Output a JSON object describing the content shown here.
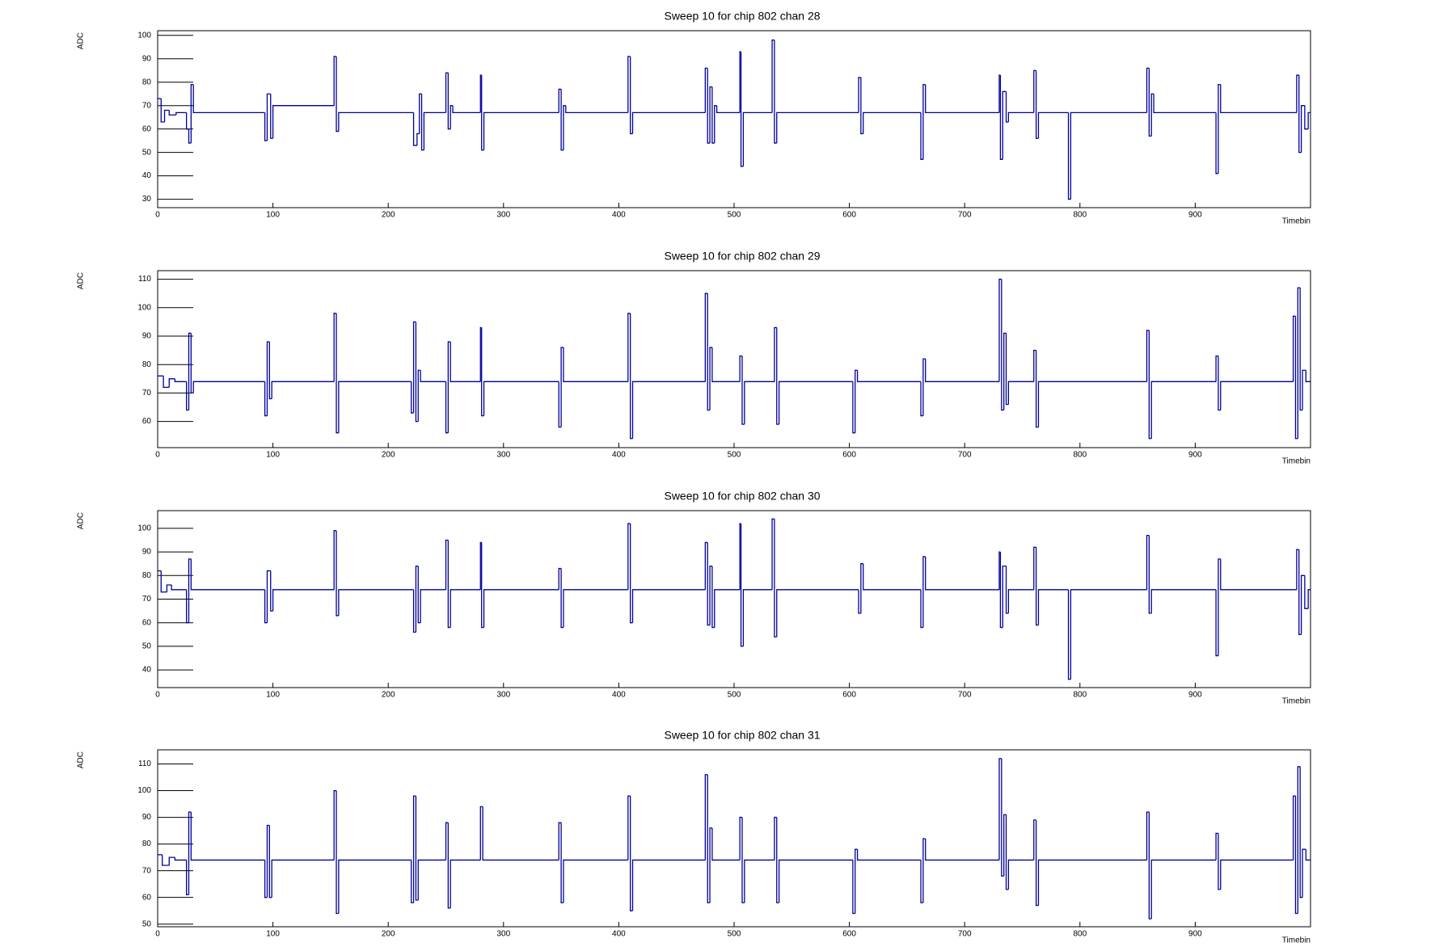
{
  "chart_data": [
    {
      "type": "line",
      "drawstyle": "steps-post",
      "title": "Sweep 10 for chip 802 chan 28",
      "x_label": "Timebin",
      "y_label": "ADC",
      "color": "#000099",
      "xlim": [
        0,
        1000
      ],
      "xticks": [
        0,
        100,
        200,
        300,
        400,
        500,
        600,
        700,
        800,
        900
      ],
      "ylim": [
        26.4,
        102
      ],
      "yticks": [
        30,
        40,
        50,
        60,
        70,
        80,
        90,
        100
      ],
      "x": [
        0,
        3,
        6,
        10,
        16,
        25,
        27,
        29,
        31,
        93,
        95,
        98,
        100,
        153,
        155,
        157,
        222,
        225,
        227,
        229,
        231,
        250,
        252,
        254,
        256,
        280,
        281,
        283,
        348,
        350,
        352,
        354,
        408,
        410,
        412,
        475,
        477,
        479,
        481,
        483,
        485,
        505,
        506,
        508,
        533,
        535,
        537,
        608,
        610,
        612,
        662,
        664,
        666,
        730,
        731,
        733,
        736,
        738,
        760,
        762,
        764,
        790,
        792,
        858,
        860,
        862,
        864,
        918,
        920,
        922,
        988,
        990,
        992,
        995,
        998
      ],
      "values": [
        73,
        63,
        68,
        66,
        67,
        60,
        54,
        79,
        67,
        55,
        75,
        56,
        70,
        91,
        59,
        67,
        53,
        58,
        75,
        51,
        67,
        84,
        60,
        70,
        67,
        83,
        51,
        67,
        77,
        51,
        70,
        67,
        91,
        58,
        67,
        86,
        54,
        78,
        54,
        70,
        67,
        93,
        44,
        67,
        98,
        54,
        67,
        82,
        58,
        67,
        47,
        79,
        67,
        83,
        47,
        76,
        63,
        67,
        85,
        56,
        67,
        30,
        67,
        86,
        57,
        75,
        67,
        41,
        79,
        67,
        83,
        50,
        70,
        60,
        67
      ]
    },
    {
      "type": "line",
      "drawstyle": "steps-post",
      "title": "Sweep 10 for chip 802 chan 29",
      "x_label": "Timebin",
      "y_label": "ADC",
      "color": "#000099",
      "xlim": [
        0,
        1000
      ],
      "xticks": [
        0,
        100,
        200,
        300,
        400,
        500,
        600,
        700,
        800,
        900
      ],
      "ylim": [
        50.8,
        113
      ],
      "yticks": [
        60,
        70,
        80,
        90,
        100,
        110
      ],
      "x": [
        0,
        5,
        10,
        15,
        25,
        27,
        29,
        31,
        93,
        95,
        97,
        99,
        153,
        155,
        157,
        220,
        222,
        224,
        226,
        228,
        250,
        252,
        254,
        280,
        281,
        283,
        348,
        350,
        352,
        408,
        410,
        412,
        475,
        477,
        479,
        481,
        505,
        507,
        509,
        535,
        537,
        539,
        603,
        605,
        607,
        662,
        664,
        666,
        730,
        732,
        734,
        736,
        738,
        760,
        762,
        764,
        858,
        860,
        862,
        918,
        920,
        922,
        985,
        987,
        989,
        991,
        993,
        996
      ],
      "values": [
        76,
        72,
        75,
        74,
        64,
        91,
        70,
        74,
        62,
        88,
        68,
        74,
        98,
        56,
        74,
        63,
        95,
        60,
        78,
        74,
        56,
        88,
        74,
        93,
        62,
        74,
        58,
        86,
        74,
        98,
        54,
        74,
        105,
        64,
        86,
        74,
        83,
        59,
        74,
        93,
        59,
        74,
        56,
        78,
        74,
        62,
        82,
        74,
        110,
        64,
        91,
        66,
        74,
        85,
        58,
        74,
        92,
        54,
        74,
        83,
        64,
        74,
        97,
        54,
        107,
        64,
        78,
        74
      ]
    },
    {
      "type": "line",
      "drawstyle": "steps-post",
      "title": "Sweep 10 for chip 802 chan 30",
      "x_label": "Timebin",
      "y_label": "ADC",
      "color": "#000099",
      "xlim": [
        0,
        1000
      ],
      "xticks": [
        0,
        100,
        200,
        300,
        400,
        500,
        600,
        700,
        800,
        900
      ],
      "ylim": [
        32.5,
        107.5
      ],
      "yticks": [
        40,
        50,
        60,
        70,
        80,
        90,
        100
      ],
      "x": [
        0,
        3,
        8,
        12,
        25,
        27,
        29,
        93,
        95,
        98,
        100,
        153,
        155,
        157,
        222,
        224,
        226,
        228,
        250,
        252,
        254,
        280,
        281,
        283,
        348,
        350,
        352,
        408,
        410,
        412,
        475,
        477,
        479,
        481,
        483,
        505,
        506,
        508,
        533,
        535,
        537,
        608,
        610,
        612,
        662,
        664,
        666,
        730,
        731,
        733,
        736,
        738,
        760,
        762,
        764,
        790,
        792,
        858,
        860,
        862,
        918,
        920,
        922,
        988,
        990,
        992,
        995,
        998
      ],
      "values": [
        82,
        73,
        76,
        74,
        60,
        87,
        74,
        60,
        82,
        65,
        74,
        99,
        63,
        74,
        56,
        84,
        60,
        74,
        95,
        58,
        74,
        94,
        58,
        74,
        83,
        58,
        74,
        102,
        60,
        74,
        94,
        59,
        84,
        58,
        74,
        102,
        50,
        74,
        104,
        54,
        74,
        64,
        85,
        74,
        58,
        88,
        74,
        90,
        58,
        84,
        64,
        74,
        92,
        59,
        74,
        36,
        74,
        97,
        64,
        74,
        46,
        87,
        74,
        91,
        55,
        80,
        66,
        74
      ]
    },
    {
      "type": "line",
      "drawstyle": "steps-post",
      "title": "Sweep 10 for chip 802 chan 31",
      "x_label": "Timebin",
      "y_label": "ADC",
      "color": "#000099",
      "xlim": [
        0,
        1000
      ],
      "xticks": [
        0,
        100,
        200,
        300,
        400,
        500,
        600,
        700,
        800,
        900
      ],
      "ylim": [
        49,
        115.3
      ],
      "yticks": [
        50,
        60,
        70,
        80,
        90,
        100,
        110
      ],
      "x": [
        0,
        4,
        10,
        15,
        25,
        27,
        29,
        93,
        95,
        97,
        99,
        153,
        155,
        157,
        220,
        222,
        224,
        226,
        250,
        252,
        254,
        280,
        282,
        348,
        350,
        352,
        408,
        410,
        412,
        475,
        477,
        479,
        481,
        505,
        507,
        509,
        535,
        537,
        539,
        603,
        605,
        607,
        662,
        664,
        666,
        730,
        732,
        734,
        736,
        738,
        760,
        762,
        764,
        858,
        860,
        862,
        918,
        920,
        922,
        985,
        987,
        989,
        991,
        993,
        996
      ],
      "values": [
        76,
        72,
        75,
        74,
        61,
        92,
        74,
        60,
        87,
        60,
        74,
        100,
        54,
        74,
        58,
        98,
        59,
        74,
        88,
        56,
        74,
        94,
        74,
        88,
        58,
        74,
        98,
        55,
        74,
        106,
        58,
        86,
        74,
        90,
        58,
        74,
        90,
        58,
        74,
        54,
        78,
        74,
        58,
        82,
        74,
        112,
        68,
        91,
        63,
        74,
        89,
        57,
        74,
        92,
        52,
        74,
        84,
        63,
        74,
        98,
        54,
        109,
        60,
        78,
        74
      ]
    }
  ]
}
